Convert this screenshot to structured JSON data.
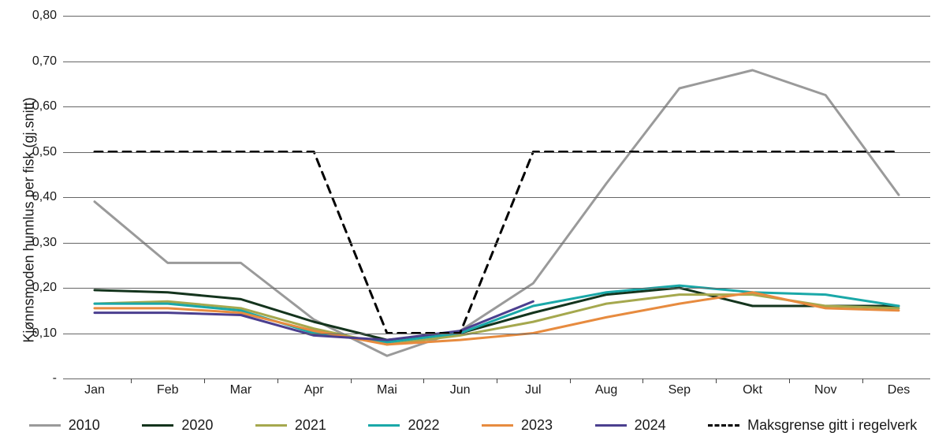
{
  "chart": {
    "type": "line",
    "background_color": "#ffffff",
    "grid_color": "#666666",
    "axis_font_size": 16,
    "y_title": "Kjønnsmoden hunnlus per fisk (gj.snitt)",
    "y_title_font_size": 18,
    "y_min": 0,
    "y_max": 0.8,
    "y_ticks": [
      {
        "value": 0.0,
        "label": "-"
      },
      {
        "value": 0.1,
        "label": "0,10"
      },
      {
        "value": 0.2,
        "label": "0,20"
      },
      {
        "value": 0.3,
        "label": "0,30"
      },
      {
        "value": 0.4,
        "label": "0,40"
      },
      {
        "value": 0.5,
        "label": "0,50"
      },
      {
        "value": 0.6,
        "label": "0,60"
      },
      {
        "value": 0.7,
        "label": "0,70"
      },
      {
        "value": 0.8,
        "label": "0,80"
      }
    ],
    "x_categories": [
      "Jan",
      "Feb",
      "Mar",
      "Apr",
      "Mai",
      "Jun",
      "Jul",
      "Aug",
      "Sep",
      "Okt",
      "Nov",
      "Des"
    ],
    "series": [
      {
        "name": "2010",
        "color": "#9a9a9a",
        "width": 3,
        "dash": null,
        "values": [
          0.39,
          0.255,
          0.255,
          0.13,
          0.05,
          0.105,
          0.21,
          0.43,
          0.64,
          0.68,
          0.625,
          0.405
        ]
      },
      {
        "name": "2020",
        "color": "#14341d",
        "width": 3,
        "dash": null,
        "values": [
          0.195,
          0.19,
          0.175,
          0.125,
          0.085,
          0.1,
          0.145,
          0.185,
          0.2,
          0.16,
          0.16,
          0.16
        ]
      },
      {
        "name": "2021",
        "color": "#a5a84e",
        "width": 3,
        "dash": null,
        "values": [
          0.165,
          0.17,
          0.155,
          0.11,
          0.075,
          0.095,
          0.125,
          0.165,
          0.185,
          0.185,
          0.16,
          0.155
        ]
      },
      {
        "name": "2022",
        "color": "#1aa8a8",
        "width": 3,
        "dash": null,
        "values": [
          0.165,
          0.165,
          0.15,
          0.1,
          0.08,
          0.1,
          0.16,
          0.19,
          0.205,
          0.19,
          0.185,
          0.16
        ]
      },
      {
        "name": "2023",
        "color": "#e78b3f",
        "width": 3,
        "dash": null,
        "values": [
          0.155,
          0.155,
          0.145,
          0.105,
          0.075,
          0.085,
          0.1,
          0.135,
          0.165,
          0.19,
          0.155,
          0.15
        ]
      },
      {
        "name": "2024",
        "color": "#4b3f8f",
        "width": 3,
        "dash": null,
        "values": [
          0.145,
          0.145,
          0.14,
          0.095,
          0.085,
          0.105,
          0.17,
          null,
          null,
          null,
          null,
          null
        ]
      },
      {
        "name": "Maksgrense gitt i regelverk",
        "color": "#000000",
        "width": 3,
        "dash": "10,8",
        "values": [
          0.5,
          0.5,
          0.5,
          0.5,
          0.1,
          0.1,
          0.5,
          0.5,
          0.5,
          0.5,
          0.5,
          0.5
        ]
      }
    ]
  }
}
